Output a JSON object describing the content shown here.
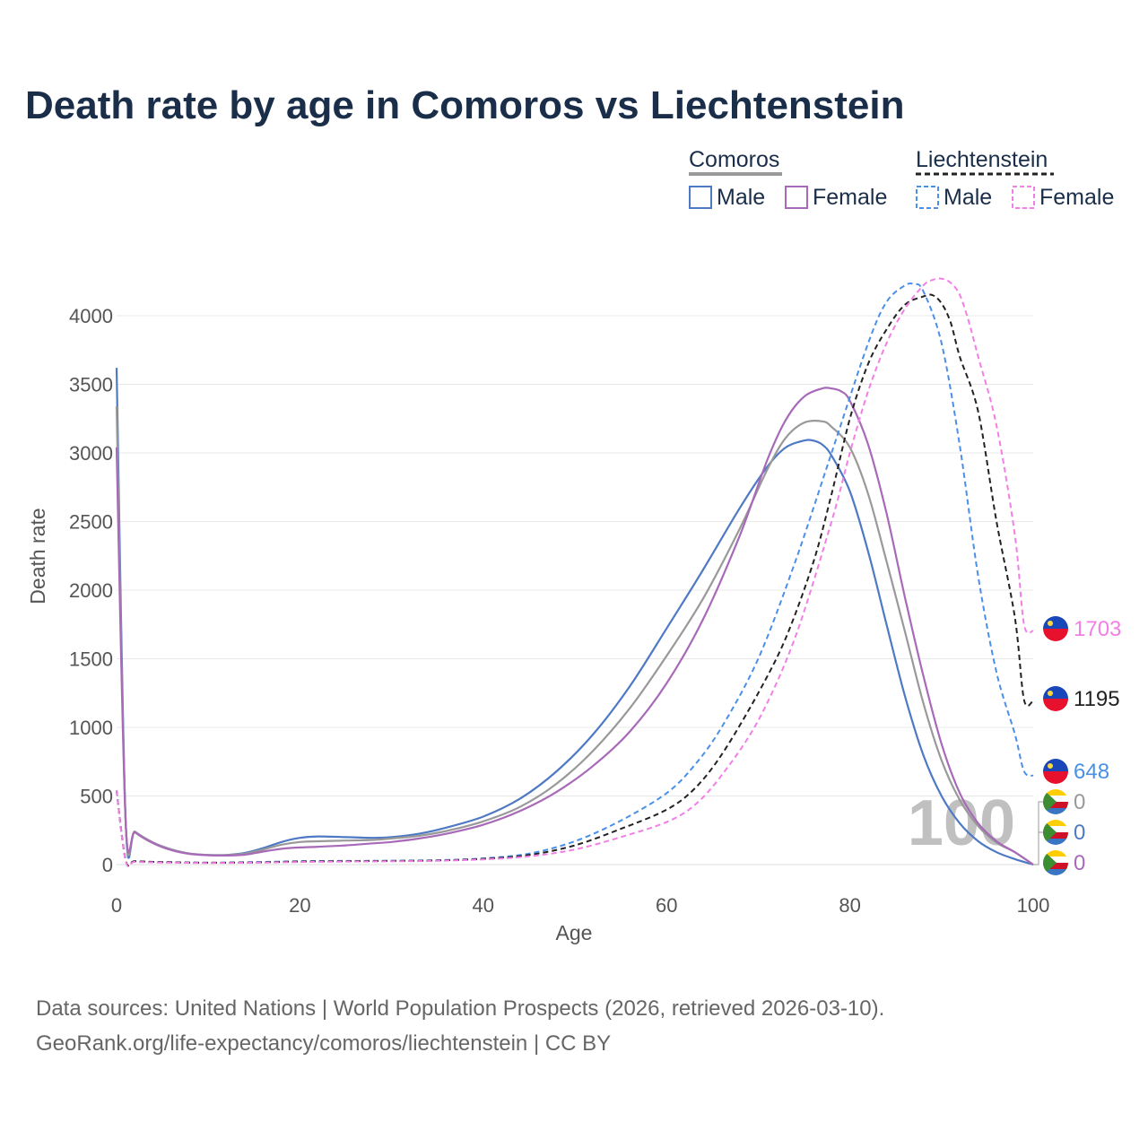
{
  "chart_data": {
    "type": "line",
    "title": "Death rate by age in Comoros vs Liechtenstein",
    "xlabel": "Age",
    "ylabel": "Death rate",
    "xlim": [
      0,
      100
    ],
    "ylim": [
      0,
      4300
    ],
    "x_ticks": [
      0,
      20,
      40,
      60,
      80,
      100
    ],
    "y_ticks": [
      0,
      500,
      1000,
      1500,
      2000,
      2500,
      3000,
      3500,
      4000
    ],
    "grid": true,
    "legend": {
      "position": "top-right",
      "groups": [
        {
          "name": "Comoros",
          "entries": [
            "Male",
            "Female"
          ]
        },
        {
          "name": "Liechtenstein",
          "entries": [
            "Male",
            "Female"
          ]
        }
      ]
    },
    "watermark": "100",
    "series": [
      {
        "name": "Comoros Male",
        "country": "Comoros",
        "sex": "Male",
        "color": "#4e79c4",
        "dash": false,
        "end_value": "0",
        "x": [
          0,
          1,
          2,
          4,
          6,
          8,
          10,
          12,
          14,
          16,
          18,
          20,
          22,
          25,
          28,
          30,
          33,
          36,
          40,
          44,
          48,
          52,
          56,
          60,
          64,
          68,
          71,
          73,
          75,
          76,
          77,
          78,
          80,
          82,
          84,
          86,
          88,
          90,
          92,
          94,
          96,
          98,
          100
        ],
        "values": [
          3620,
          300,
          240,
          160,
          110,
          80,
          70,
          70,
          85,
          120,
          165,
          195,
          205,
          200,
          195,
          200,
          225,
          270,
          350,
          480,
          680,
          950,
          1300,
          1720,
          2150,
          2600,
          2900,
          3040,
          3090,
          3090,
          3060,
          2980,
          2720,
          2280,
          1750,
          1230,
          800,
          500,
          300,
          170,
          90,
          40,
          0
        ]
      },
      {
        "name": "Comoros Total",
        "country": "Comoros",
        "sex": "Total",
        "color": "#999999",
        "dash": false,
        "end_value": "0",
        "x": [
          0,
          1,
          2,
          4,
          6,
          8,
          10,
          12,
          14,
          16,
          18,
          20,
          22,
          25,
          28,
          30,
          33,
          36,
          40,
          44,
          48,
          52,
          56,
          60,
          64,
          68,
          71,
          73,
          75,
          77,
          78,
          80,
          82,
          84,
          86,
          88,
          90,
          92,
          94,
          96,
          98,
          100
        ],
        "values": [
          3340,
          300,
          240,
          160,
          110,
          80,
          70,
          70,
          80,
          110,
          145,
          165,
          170,
          175,
          180,
          190,
          210,
          245,
          315,
          420,
          590,
          830,
          1140,
          1520,
          1940,
          2450,
          2880,
          3110,
          3220,
          3230,
          3190,
          3040,
          2700,
          2210,
          1700,
          1180,
          760,
          470,
          280,
          160,
          90,
          0
        ]
      },
      {
        "name": "Comoros Female",
        "country": "Comoros",
        "sex": "Female",
        "color": "#a86ab8",
        "dash": false,
        "end_value": "0",
        "x": [
          0,
          1,
          2,
          4,
          6,
          8,
          10,
          12,
          14,
          16,
          18,
          20,
          22,
          25,
          28,
          30,
          33,
          36,
          40,
          44,
          48,
          52,
          56,
          60,
          64,
          68,
          71,
          73,
          75,
          77,
          78,
          79,
          80,
          82,
          84,
          86,
          88,
          90,
          92,
          94,
          96,
          98,
          100
        ],
        "values": [
          3040,
          300,
          235,
          155,
          105,
          78,
          68,
          66,
          72,
          95,
          115,
          125,
          130,
          140,
          155,
          165,
          190,
          225,
          290,
          390,
          530,
          720,
          970,
          1320,
          1790,
          2400,
          2950,
          3240,
          3410,
          3470,
          3470,
          3450,
          3380,
          3060,
          2560,
          1950,
          1380,
          880,
          520,
          300,
          170,
          90,
          0
        ]
      },
      {
        "name": "Liechtenstein Male",
        "country": "Liechtenstein",
        "sex": "Male",
        "color": "#4a8fe8",
        "dash": true,
        "end_value": "648",
        "x": [
          0,
          1,
          2,
          5,
          10,
          15,
          20,
          25,
          30,
          35,
          40,
          45,
          50,
          55,
          60,
          63,
          66,
          70,
          74,
          78,
          82,
          84,
          86,
          87,
          88,
          90,
          92,
          94,
          96,
          98,
          99,
          100
        ],
        "values": [
          540,
          30,
          25,
          18,
          14,
          18,
          25,
          27,
          28,
          32,
          45,
          80,
          170,
          320,
          520,
          720,
          1000,
          1500,
          2200,
          3000,
          3800,
          4100,
          4220,
          4230,
          4180,
          3800,
          3050,
          2100,
          1400,
          950,
          680,
          648
        ]
      },
      {
        "name": "Liechtenstein Total",
        "country": "Liechtenstein",
        "sex": "Total",
        "color": "#222222",
        "dash": true,
        "end_value": "1195",
        "x": [
          0,
          1,
          2,
          5,
          10,
          15,
          20,
          25,
          30,
          35,
          40,
          45,
          50,
          55,
          60,
          63,
          66,
          70,
          73,
          76,
          78,
          80,
          82,
          84,
          86,
          88,
          89,
          90,
          91,
          92,
          94,
          96,
          98,
          99,
          100
        ],
        "values": [
          540,
          30,
          25,
          18,
          14,
          16,
          22,
          25,
          27,
          30,
          42,
          70,
          140,
          260,
          400,
          550,
          800,
          1250,
          1650,
          2200,
          2700,
          3250,
          3650,
          3900,
          4080,
          4140,
          4150,
          4090,
          3950,
          3700,
          3300,
          2500,
          1800,
          1200,
          1195
        ]
      },
      {
        "name": "Liechtenstein Female",
        "country": "Liechtenstein",
        "sex": "Female",
        "color": "#f27fe6",
        "dash": true,
        "end_value": "1703",
        "x": [
          0,
          1,
          2,
          5,
          10,
          15,
          20,
          25,
          30,
          35,
          40,
          45,
          50,
          55,
          60,
          63,
          66,
          70,
          74,
          78,
          80,
          82,
          84,
          86,
          88,
          89,
          90,
          91,
          92,
          93,
          94,
          96,
          98,
          99,
          100
        ],
        "values": [
          540,
          25,
          20,
          15,
          12,
          14,
          19,
          22,
          24,
          28,
          38,
          60,
          110,
          200,
          310,
          430,
          650,
          1050,
          1650,
          2500,
          3000,
          3450,
          3800,
          4050,
          4220,
          4260,
          4270,
          4240,
          4150,
          3950,
          3700,
          3200,
          2400,
          1750,
          1703
        ]
      }
    ]
  },
  "footer": {
    "source_line1": "Data sources: United Nations | World Population Prospects (2026, retrieved 2026-03-10).",
    "source_line2": "GeoRank.org/life-expectancy/comoros/liechtenstein | CC BY"
  }
}
